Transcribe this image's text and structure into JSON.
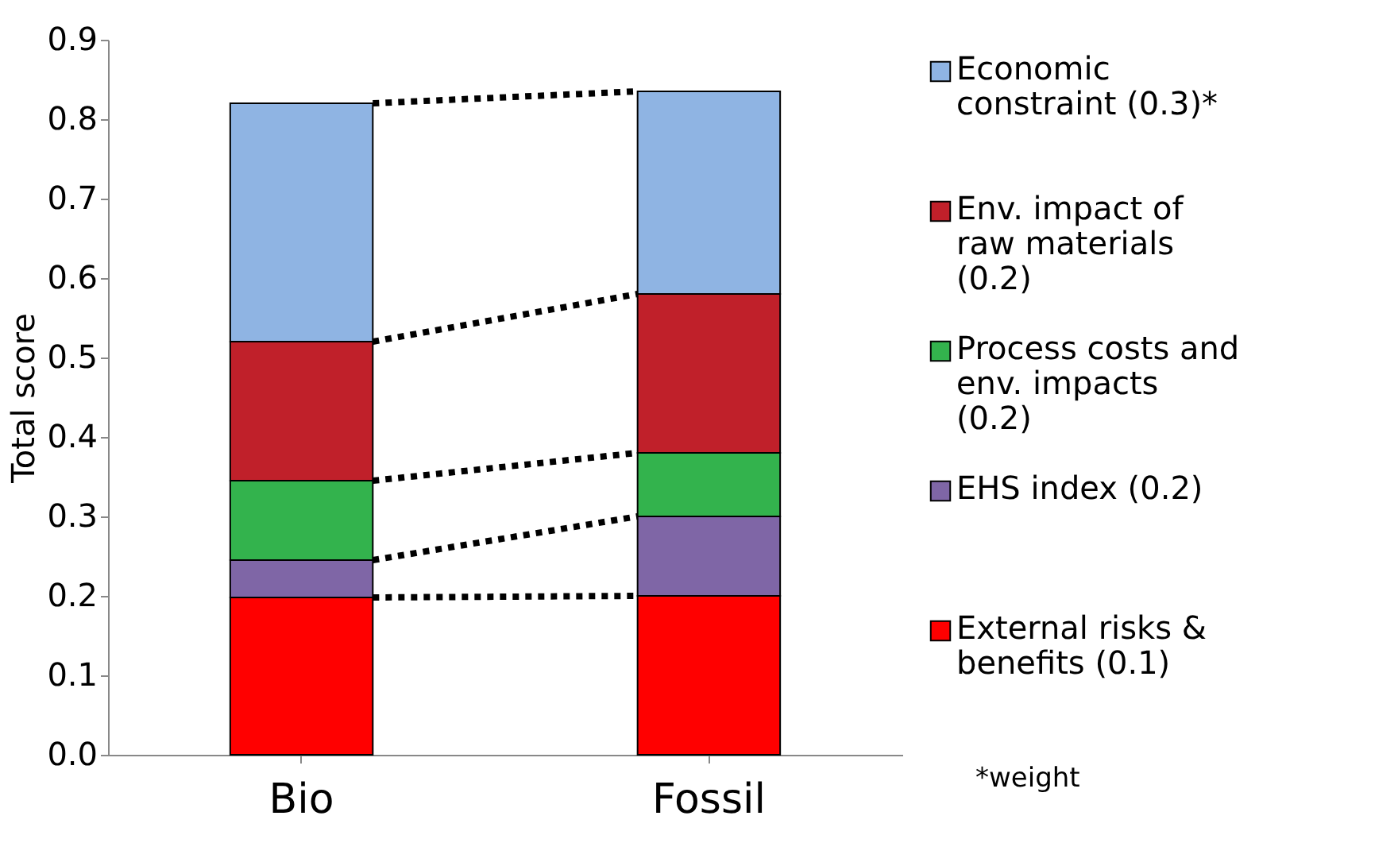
{
  "chart_data": {
    "type": "bar",
    "stacked": true,
    "ylabel": "Total score",
    "categories": [
      "Bio",
      "Fossil"
    ],
    "series": [
      {
        "name": "External risks & benefits (0.1)",
        "color": "#ff0000",
        "values": [
          0.198,
          0.2
        ]
      },
      {
        "name": "EHS index (0.2)",
        "color": "#7f66a6",
        "values": [
          0.047,
          0.1
        ]
      },
      {
        "name": "Process costs and env. impacts (0.2)",
        "color": "#33b34d",
        "values": [
          0.1,
          0.08
        ]
      },
      {
        "name": "Env. impact of raw materials (0.2)",
        "color": "#c0202a",
        "values": [
          0.175,
          0.2
        ]
      },
      {
        "name": "Economic constraint (0.3)*",
        "color": "#8fb4e3",
        "values": [
          0.3,
          0.255
        ]
      }
    ],
    "ylim": [
      0,
      0.9
    ],
    "yticks": [
      {
        "value": 0,
        "label": "0.0"
      },
      0.1,
      0.2,
      0.3,
      0.4,
      0.5,
      0.6,
      0.7,
      0.8,
      0.9
    ],
    "grid": false,
    "legend": "right",
    "annotations": [
      "*weight"
    ]
  }
}
